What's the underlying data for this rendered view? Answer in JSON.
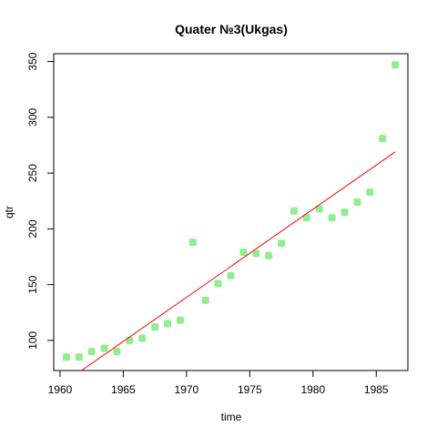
{
  "chart_data": {
    "type": "scatter",
    "title": "Quater №3(Ukgas)",
    "xlabel": "time",
    "ylabel": "qtr",
    "xlim": [
      1959.5,
      1987.5
    ],
    "ylim": [
      73,
      357
    ],
    "x_ticks": [
      1960,
      1965,
      1970,
      1975,
      1980,
      1985
    ],
    "y_ticks": [
      100,
      150,
      200,
      250,
      300,
      350
    ],
    "x_tick_labels": [
      "1960",
      "1965",
      "1970",
      "1975",
      "1980",
      "1985"
    ],
    "y_tick_labels": [
      "100",
      "150",
      "200",
      "250",
      "300",
      "350"
    ],
    "grid": false,
    "series": [
      {
        "type": "scatter",
        "color": "#90ee90",
        "x": [
          1960.5,
          1961.5,
          1962.5,
          1963.5,
          1964.5,
          1965.5,
          1966.5,
          1967.5,
          1968.5,
          1969.5,
          1970.5,
          1971.5,
          1972.5,
          1973.5,
          1974.5,
          1975.5,
          1976.5,
          1977.5,
          1978.5,
          1979.5,
          1980.5,
          1981.5,
          1982.5,
          1983.5,
          1984.5,
          1985.5,
          1986.5
        ],
        "y": [
          85,
          85,
          90,
          93,
          90,
          100,
          102,
          112,
          115,
          118,
          188,
          136,
          151,
          158,
          179,
          178,
          176,
          187,
          216,
          210,
          218,
          210,
          215,
          224,
          233,
          281,
          347
        ]
      },
      {
        "type": "line",
        "color": "#ff0000",
        "x": [
          1961.7,
          1986.5
        ],
        "y": [
          73,
          269
        ]
      }
    ]
  }
}
